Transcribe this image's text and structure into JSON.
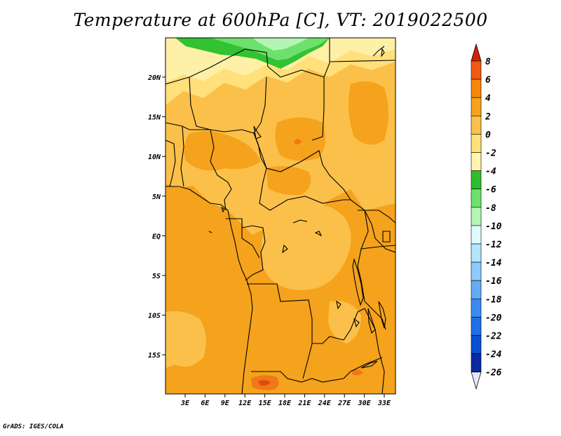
{
  "title": "Temperature at 600hPa [C], VT: 2019022500",
  "footer": "GrADS: IGES/COLA",
  "colors": {
    "band_minus4_minus2": "#fff0a8",
    "band_minus2_0": "#ffe07a",
    "band_0_2": "#fbc04a",
    "band_2_4": "#f5a21c",
    "band_4_6": "#f07818",
    "band_6_8": "#e04a0e",
    "green_dark": "#32c232",
    "green_mid": "#6ee06e",
    "green_light": "#b4f5b4",
    "border": "#000000"
  },
  "chart_data": {
    "type": "heatmap",
    "title": "Temperature at 600hPa [C], VT: 2019022500",
    "x_ticks": [
      "3E",
      "6E",
      "9E",
      "12E",
      "15E",
      "18E",
      "21E",
      "24E",
      "27E",
      "30E",
      "33E"
    ],
    "y_ticks": [
      "20N",
      "15N",
      "10N",
      "5N",
      "EQ",
      "5S",
      "10S",
      "15S"
    ],
    "colorbar": {
      "levels": [
        "8",
        "6",
        "4",
        "2",
        "0",
        "-2",
        "-4",
        "-6",
        "-8",
        "-10",
        "-12",
        "-14",
        "-16",
        "-18",
        "-20",
        "-22",
        "-24",
        "-26"
      ],
      "colors": [
        "#e8200a",
        "#f05a10",
        "#f5860c",
        "#f5a21c",
        "#fbc04a",
        "#ffe07a",
        "#fff4b0",
        "#2ebd2e",
        "#6ee06e",
        "#b4f5b4",
        "#e0fbff",
        "#b4e6ff",
        "#8ccaff",
        "#64aaf5",
        "#3c8cf0",
        "#1e6ee6",
        "#0a4ed2",
        "#0a2aa0"
      ],
      "top_arrow_color": "#d8200a",
      "bottom_arrow_color": "#e6e6ff"
    }
  }
}
